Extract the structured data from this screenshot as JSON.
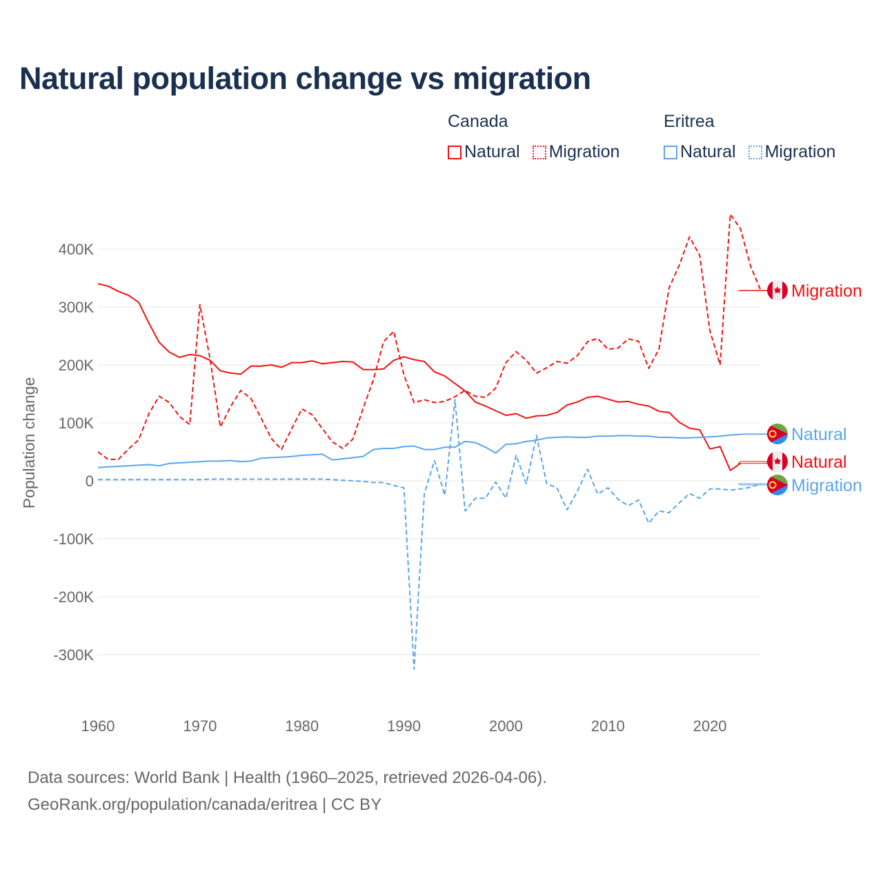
{
  "title": "Natural population change vs migration",
  "legend": {
    "groups": [
      {
        "name": "Canada",
        "items": [
          {
            "label": "Natural",
            "style": "solid"
          },
          {
            "label": "Migration",
            "style": "dotted"
          }
        ],
        "color": "#f20f0f"
      },
      {
        "name": "Eritrea",
        "items": [
          {
            "label": "Natural",
            "style": "solid"
          },
          {
            "label": "Migration",
            "style": "dotted"
          }
        ],
        "color": "#5aa5eb"
      }
    ]
  },
  "source_line1": "Data sources: World Bank | Health (1960–2025, retrieved 2026-04-06).",
  "source_line2": "GeoRank.org/population/canada/eritrea | CC BY",
  "chart_data": {
    "type": "line",
    "title": "Natural population change vs migration",
    "xlabel": "",
    "ylabel": "Population change",
    "xlim": [
      1960,
      2025
    ],
    "ylim": [
      -350000,
      470000
    ],
    "grid": true,
    "legend_placement": "top-right",
    "x_ticks": [
      1960,
      1970,
      1980,
      1990,
      2000,
      2010,
      2020
    ],
    "x_tick_labels": [
      "1960",
      "1970",
      "1980",
      "1990",
      "2000",
      "2010",
      "2020"
    ],
    "y_ticks": [
      -300000,
      -200000,
      -100000,
      0,
      100000,
      200000,
      300000,
      400000
    ],
    "y_tick_labels": [
      "-300K",
      "-200K",
      "-100K",
      "0",
      "100K",
      "200K",
      "300K",
      "400K"
    ],
    "series": [
      {
        "name": "Canada Natural",
        "end_label": "Natural",
        "country": "canada",
        "color": "#f20f0f",
        "dash": false,
        "x_start": 1960,
        "values_k": [
          340,
          336,
          327,
          320,
          308,
          272,
          239,
          222,
          213,
          218,
          216,
          208,
          190,
          186,
          184,
          198,
          198,
          200,
          196,
          204,
          204,
          207,
          202,
          204,
          206,
          205,
          192,
          192,
          193,
          208,
          214,
          209,
          206,
          188,
          181,
          168,
          155,
          136,
          129,
          121,
          113,
          116,
          108,
          112,
          113,
          118,
          131,
          136,
          144,
          146,
          141,
          136,
          137,
          132,
          129,
          120,
          118,
          101,
          91,
          88,
          55,
          59,
          18,
          30
        ]
      },
      {
        "name": "Canada Migration",
        "end_label": "Migration",
        "country": "canada",
        "color": "#f20f0f",
        "dash": true,
        "x_start": 1960,
        "values_k": [
          50,
          37,
          37,
          55,
          71,
          116,
          146,
          135,
          111,
          97,
          304,
          210,
          93,
          128,
          156,
          142,
          108,
          73,
          54,
          90,
          124,
          114,
          90,
          67,
          56,
          72,
          125,
          174,
          240,
          258,
          183,
          135,
          140,
          135,
          137,
          145,
          156,
          146,
          144,
          160,
          204,
          223,
          208,
          186,
          195,
          206,
          203,
          216,
          240,
          246,
          227,
          229,
          245,
          241,
          194,
          227,
          333,
          372,
          421,
          389,
          259,
          200,
          460,
          435,
          370,
          328
        ]
      },
      {
        "name": "Eritrea Natural",
        "end_label": "Natural",
        "country": "eritrea",
        "color": "#5aa5eb",
        "dash": false,
        "x_start": 1960,
        "values_k": [
          23,
          24,
          25,
          26,
          27,
          28,
          26,
          30,
          31,
          32,
          33,
          34,
          34,
          35,
          33,
          34,
          39,
          40,
          41,
          42,
          44,
          45,
          46,
          36,
          38,
          40,
          42,
          54,
          56,
          56,
          59,
          60,
          54,
          54,
          58,
          58,
          68,
          66,
          58,
          48,
          63,
          64,
          68,
          70,
          74,
          75,
          76,
          75,
          75,
          77,
          77,
          78,
          78,
          77,
          77,
          75,
          75,
          74,
          74,
          75,
          76,
          77,
          79,
          80
        ]
      },
      {
        "name": "Eritrea Migration",
        "end_label": "Migration",
        "country": "eritrea",
        "color": "#5aa5eb",
        "dash": true,
        "x_start": 1960,
        "values_k": [
          2,
          2,
          2,
          2,
          2,
          2,
          2,
          2,
          2,
          2,
          2,
          3,
          3,
          3,
          3,
          3,
          3,
          3,
          3,
          3,
          3,
          3,
          3,
          2,
          1,
          0,
          -1,
          -3,
          -3,
          -8,
          -12,
          -325,
          -22,
          35,
          -25,
          140,
          -52,
          -30,
          -30,
          -2,
          -30,
          44,
          -5,
          78,
          -5,
          -12,
          -50,
          -18,
          20,
          -23,
          -12,
          -32,
          -43,
          -33,
          -73,
          -52,
          -55,
          -38,
          -22,
          -30,
          -14,
          -14,
          -16,
          -14,
          -11,
          -5
        ]
      }
    ]
  }
}
